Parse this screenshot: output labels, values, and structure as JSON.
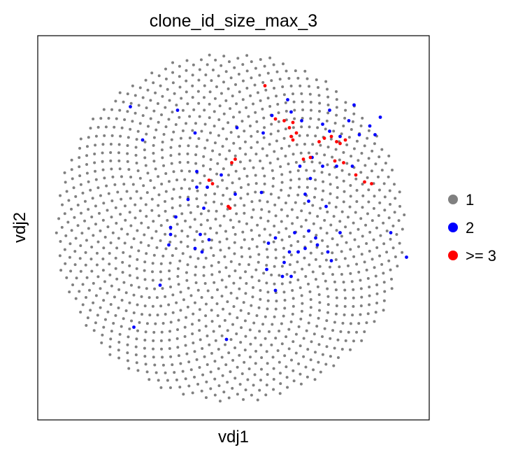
{
  "chart_data": {
    "type": "scatter",
    "title": "clone_id_size_max_3",
    "xlabel": "vdj1",
    "ylabel": "vdj2",
    "ticks": "none",
    "grid": false,
    "legend_position": "right",
    "series": [
      {
        "name": "1",
        "color": "#808080",
        "layout": "phyllotaxis disc of ~1400 cells",
        "count_estimate": 1400
      },
      {
        "name": "2",
        "color": "#0000ff",
        "points": [
          [
            -0.57,
            0.69
          ],
          [
            -0.3,
            0.67
          ],
          [
            -0.5,
            0.5
          ],
          [
            -0.2,
            0.54
          ],
          [
            0.04,
            0.57
          ],
          [
            0.19,
            0.54
          ],
          [
            0.33,
            0.73
          ],
          [
            0.24,
            0.64
          ],
          [
            0.35,
            0.66
          ],
          [
            0.41,
            0.61
          ],
          [
            0.53,
            0.59
          ],
          [
            0.57,
            0.55
          ],
          [
            0.71,
            0.7
          ],
          [
            0.57,
            0.67
          ],
          [
            0.68,
            0.61
          ],
          [
            0.63,
            0.52
          ],
          [
            0.8,
            0.58
          ],
          [
            0.83,
            0.53
          ],
          [
            0.86,
            0.63
          ],
          [
            0.74,
            0.53
          ],
          [
            0.47,
            0.4
          ],
          [
            0.53,
            0.35
          ],
          [
            0.61,
            0.35
          ],
          [
            0.7,
            0.35
          ],
          [
            0.46,
            0.28
          ],
          [
            0.4,
            0.35
          ],
          [
            -0.05,
            0.3
          ],
          [
            -0.19,
            0.32
          ],
          [
            -0.13,
            0.23
          ],
          [
            -0.19,
            0.23
          ],
          [
            -0.24,
            0.16
          ],
          [
            -0.15,
            0.11
          ],
          [
            -0.31,
            0.06
          ],
          [
            -0.34,
            0.0
          ],
          [
            -0.34,
            -0.04
          ],
          [
            -0.35,
            -0.1
          ],
          [
            -0.17,
            -0.04
          ],
          [
            -0.12,
            -0.07
          ],
          [
            -0.2,
            -0.12
          ],
          [
            -0.16,
            -0.14
          ],
          [
            0.03,
            0.19
          ],
          [
            0.18,
            0.2
          ],
          [
            0.43,
            0.19
          ],
          [
            0.45,
            0.15
          ],
          [
            0.55,
            0.12
          ],
          [
            0.37,
            -0.03
          ],
          [
            0.45,
            -0.02
          ],
          [
            0.49,
            -0.06
          ],
          [
            0.5,
            -0.1
          ],
          [
            0.26,
            -0.06
          ],
          [
            0.22,
            -0.09
          ],
          [
            0.34,
            -0.14
          ],
          [
            0.39,
            -0.14
          ],
          [
            0.43,
            -0.12
          ],
          [
            0.56,
            -0.14
          ],
          [
            0.58,
            -0.19
          ],
          [
            0.63,
            -0.03
          ],
          [
            0.92,
            -0.03
          ],
          [
            0.21,
            -0.24
          ],
          [
            0.31,
            -0.2
          ],
          [
            0.3,
            -0.28
          ],
          [
            0.35,
            -0.28
          ],
          [
            1.01,
            -0.17
          ],
          [
            0.26,
            -0.36
          ],
          [
            -0.4,
            -0.33
          ],
          [
            -0.55,
            -0.57
          ],
          [
            -0.02,
            -0.64
          ]
        ]
      },
      {
        "name": ">= 3",
        "color": "#ff0000",
        "points": [
          [
            0.2,
            0.81
          ],
          [
            0.26,
            0.62
          ],
          [
            0.31,
            0.61
          ],
          [
            0.36,
            0.6
          ],
          [
            0.34,
            0.57
          ],
          [
            0.35,
            0.52
          ],
          [
            0.38,
            0.54
          ],
          [
            0.36,
            0.5
          ],
          [
            0.51,
            0.49
          ],
          [
            0.54,
            0.51
          ],
          [
            0.58,
            0.52
          ],
          [
            0.61,
            0.49
          ],
          [
            0.66,
            0.5
          ],
          [
            0.63,
            0.48
          ],
          [
            0.42,
            0.39
          ],
          [
            0.6,
            0.38
          ],
          [
            0.65,
            0.37
          ],
          [
            0.72,
            0.3
          ],
          [
            0.77,
            0.26
          ],
          [
            0.81,
            0.25
          ],
          [
            0.46,
            0.4
          ],
          [
            0.01,
            0.37
          ],
          [
            0.03,
            0.39
          ],
          [
            -0.12,
            0.27
          ],
          [
            -0.1,
            0.25
          ],
          [
            -0.01,
            0.12
          ],
          [
            0.0,
            0.11
          ]
        ]
      }
    ]
  },
  "chart": {
    "title": "clone_id_size_max_3",
    "xlabel": "vdj1",
    "ylabel": "vdj2"
  },
  "legend": {
    "items": [
      {
        "label": "1"
      },
      {
        "label": "2"
      },
      {
        "label": ">= 3"
      }
    ]
  }
}
